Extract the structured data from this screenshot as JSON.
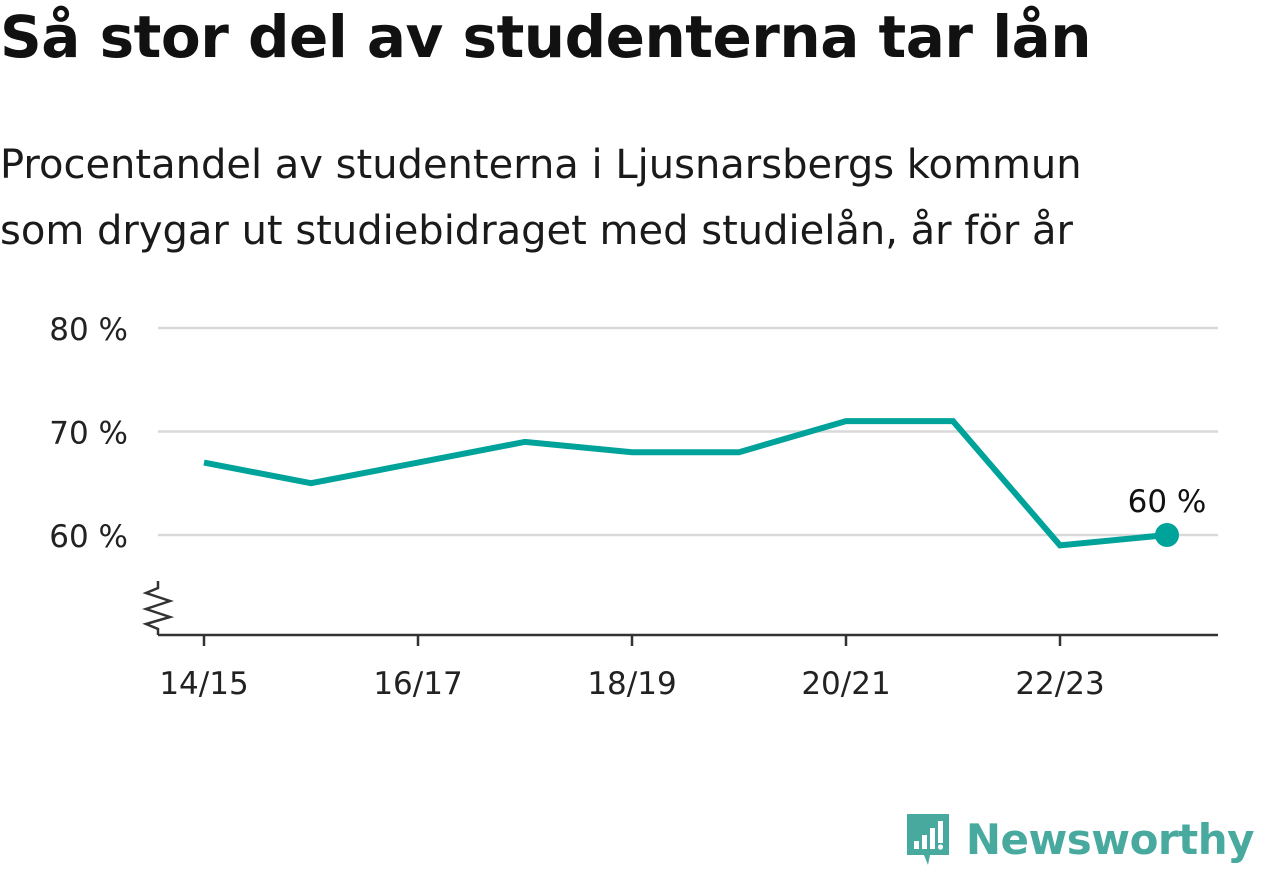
{
  "title": "Så stor del av studenterna tar lån",
  "subtitle_lines": [
    "Procentandel av studenterna i Ljusnarsbergs kommun",
    "som drygar ut studiebidraget med studielån, år för år"
  ],
  "brand": {
    "name": "Newsworthy",
    "logo_icon": "newsworthy-chart-logo-icon"
  },
  "colors": {
    "line": "#00a39a",
    "grid": "#d9d9d9",
    "axis": "#333333",
    "brand": "#48a99f"
  },
  "chart_data": {
    "type": "line",
    "x": [
      "14/15",
      "15/16",
      "16/17",
      "17/18",
      "18/19",
      "19/20",
      "20/21",
      "21/22",
      "22/23",
      "23/24"
    ],
    "series": [
      {
        "values": [
          67,
          65,
          67,
          69,
          68,
          68,
          71,
          71,
          59,
          60
        ]
      }
    ],
    "x_tick_labels": [
      "14/15",
      "16/17",
      "18/19",
      "20/21",
      "22/23"
    ],
    "y_tick_labels": [
      "60 %",
      "70 %",
      "80 %"
    ],
    "y_ticks": [
      60,
      70,
      80
    ],
    "ylim": [
      50,
      80
    ],
    "axis_break": true,
    "grid": true,
    "end_label": "60 %"
  }
}
